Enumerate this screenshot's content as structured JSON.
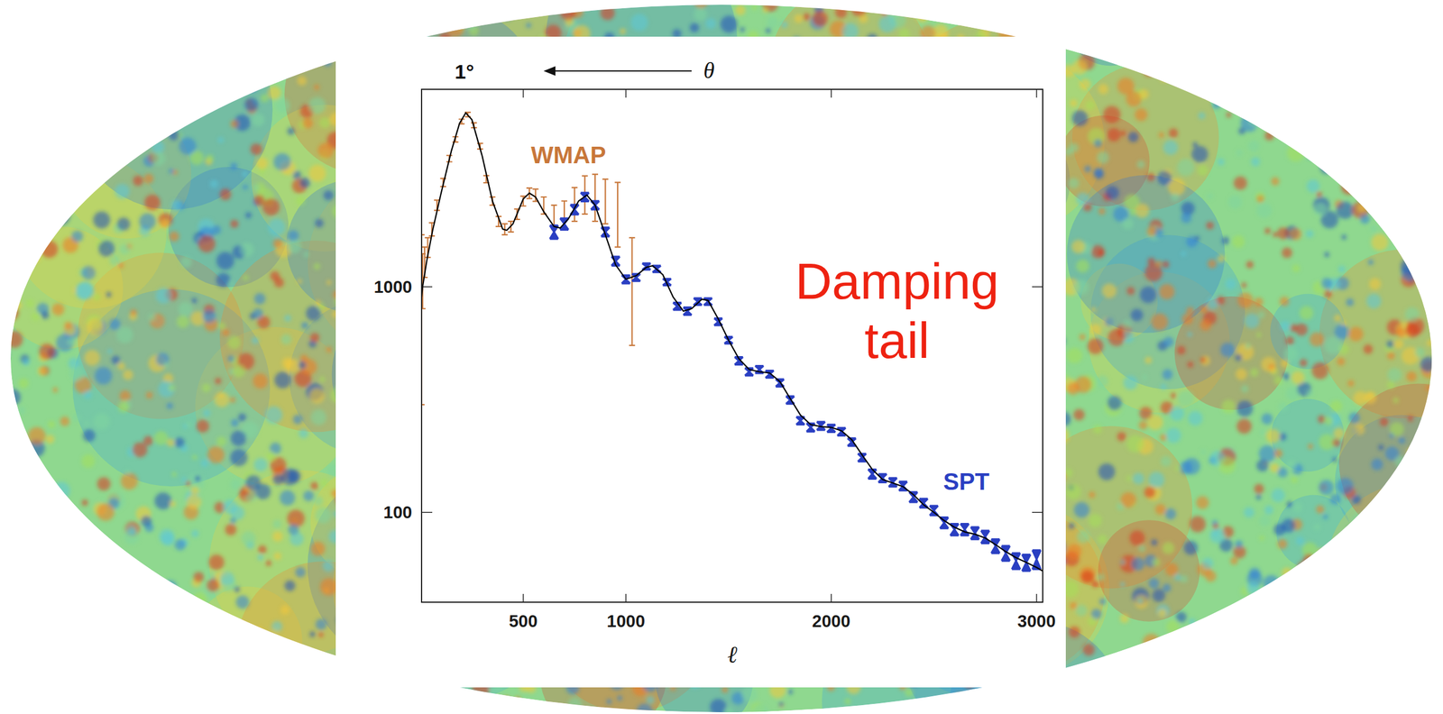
{
  "chart_data": {
    "type": "scatter",
    "x_label": "ℓ",
    "log": "y",
    "grid": false,
    "xlim": [
      5,
      3030
    ],
    "ylim": [
      40,
      7500
    ],
    "xticks": [
      500,
      1000,
      2000,
      3000
    ],
    "yticks": [
      100,
      1000
    ],
    "series": [
      {
        "name": "WMAP",
        "type": "scatter",
        "marker": "errorbar",
        "color": "#c8773a",
        "x": [
          5,
          10,
          20,
          35,
          55,
          80,
          110,
          140,
          170,
          200,
          230,
          260,
          290,
          320,
          350,
          380,
          410,
          440,
          470,
          500,
          530,
          560,
          600,
          650,
          700,
          750,
          800,
          850,
          900,
          960,
          1030
        ],
        "values": [
          1000,
          1100,
          1300,
          1500,
          1800,
          2300,
          2900,
          3700,
          4500,
          5400,
          5800,
          5200,
          4200,
          3000,
          2400,
          1950,
          1800,
          1850,
          2100,
          2400,
          2600,
          2550,
          2300,
          2050,
          2100,
          2350,
          2600,
          2550,
          2450,
          2200,
          1100
        ],
        "errors": [
          700,
          300,
          200,
          150,
          120,
          120,
          120,
          120,
          120,
          130,
          130,
          130,
          120,
          110,
          100,
          100,
          100,
          100,
          110,
          120,
          140,
          160,
          200,
          250,
          300,
          400,
          500,
          600,
          550,
          700,
          550
        ]
      },
      {
        "name": "SPT",
        "type": "scatter",
        "marker": "errorbar",
        "color": "#2a3fc2",
        "x": [
          650,
          700,
          750,
          800,
          850,
          900,
          950,
          1000,
          1050,
          1100,
          1150,
          1200,
          1250,
          1300,
          1350,
          1400,
          1450,
          1500,
          1550,
          1600,
          1650,
          1700,
          1750,
          1800,
          1850,
          1900,
          1950,
          2000,
          2050,
          2100,
          2150,
          2200,
          2250,
          2300,
          2350,
          2400,
          2450,
          2500,
          2550,
          2600,
          2650,
          2700,
          2750,
          2800,
          2850,
          2900,
          2950,
          3000
        ],
        "values": [
          1750,
          1900,
          2200,
          2500,
          2300,
          1750,
          1300,
          1080,
          1100,
          1230,
          1200,
          1050,
          820,
          780,
          860,
          860,
          700,
          580,
          470,
          420,
          430,
          410,
          375,
          315,
          255,
          238,
          242,
          236,
          228,
          205,
          175,
          148,
          142,
          136,
          131,
          117,
          110,
          102,
          90,
          84,
          84,
          81,
          78,
          71,
          66,
          61,
          60,
          62
        ],
        "errors": [
          120,
          110,
          110,
          110,
          100,
          80,
          60,
          45,
          40,
          40,
          40,
          35,
          30,
          30,
          30,
          30,
          25,
          20,
          18,
          16,
          16,
          15,
          14,
          12,
          10,
          10,
          10,
          9,
          9,
          8,
          7,
          7,
          6,
          6,
          6,
          6,
          5,
          5,
          5,
          5,
          5,
          5,
          5,
          5,
          5,
          5,
          5,
          6
        ]
      },
      {
        "type": "line",
        "color": "#000000",
        "x": [
          5,
          10,
          30,
          60,
          100,
          150,
          190,
          220,
          250,
          300,
          350,
          400,
          420,
          450,
          500,
          530,
          560,
          600,
          650,
          680,
          720,
          770,
          810,
          850,
          900,
          950,
          1000,
          1050,
          1100,
          1130,
          1180,
          1230,
          1280,
          1320,
          1370,
          1400,
          1450,
          1500,
          1550,
          1600,
          1650,
          1700,
          1750,
          1800,
          1850,
          1900,
          1950,
          2000,
          2050,
          2100,
          2150,
          2200,
          2250,
          2300,
          2350,
          2400,
          2450,
          2500,
          2550,
          2600,
          2650,
          2700,
          2750,
          2800,
          2850,
          2900,
          2950,
          3000,
          3030
        ],
        "values": [
          900,
          1000,
          1300,
          1800,
          2600,
          4000,
          5300,
          5900,
          5500,
          3800,
          2400,
          1800,
          1780,
          1900,
          2450,
          2600,
          2500,
          2150,
          1850,
          1820,
          2000,
          2400,
          2550,
          2300,
          1700,
          1250,
          1080,
          1120,
          1220,
          1240,
          1130,
          900,
          780,
          800,
          880,
          870,
          720,
          580,
          480,
          430,
          420,
          415,
          380,
          320,
          270,
          245,
          240,
          238,
          230,
          210,
          180,
          155,
          140,
          135,
          130,
          120,
          108,
          100,
          92,
          86,
          82,
          80,
          77,
          72,
          67,
          63,
          60,
          57,
          55
        ]
      }
    ],
    "annotations": [
      {
        "text": "1°"
      },
      {
        "text": "θ"
      },
      {
        "text": "Damping tail",
        "color": "#ee2211"
      }
    ]
  }
}
